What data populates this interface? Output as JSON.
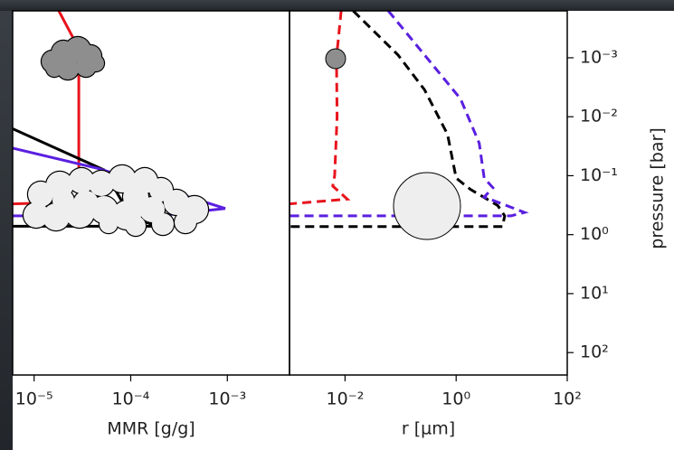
{
  "chart_data": [
    {
      "type": "line",
      "xlabel": "MMR [g/g]",
      "xscale": "log",
      "yscale": "log",
      "yinverted": true,
      "xlim": [
        6e-06,
        0.0044
      ],
      "xticks": [
        {
          "value": 1e-05,
          "label": "10⁻⁵"
        },
        {
          "value": 0.0001,
          "label": "10⁻⁴"
        },
        {
          "value": 0.001,
          "label": "10⁻³"
        }
      ],
      "ylim": [
        0.00016,
        240
      ],
      "series": [
        {
          "color": "#e8141c",
          "dash": false,
          "x": [
            1.8e-05,
            2.5e-05,
            2.9e-05,
            2.9e-05,
            2.9e-05,
            6e-06
          ],
          "values": [
            0.00016,
            0.00044,
            0.0017,
            0.08,
            0.28,
            0.3
          ]
        },
        {
          "color": "#000000",
          "dash": false,
          "x": [
            6e-06,
            5.3e-05,
            0.0001,
            0.00019,
            6e-06
          ],
          "values": [
            0.016,
            0.08,
            0.5,
            0.72,
            0.72
          ]
        },
        {
          "color": "#5a1fe0",
          "dash": false,
          "x": [
            6e-06,
            4.7e-05,
            0.00095,
            0.00019,
            6e-06
          ],
          "values": [
            0.034,
            0.076,
            0.36,
            0.48,
            0.48
          ]
        }
      ]
    },
    {
      "type": "line",
      "xlabel": "r [µm]",
      "ylabel": "pressure [bar]",
      "xscale": "log",
      "yscale": "log",
      "yinverted": true,
      "xlim": [
        0.001,
        100
      ],
      "xticks": [
        {
          "value": 0.01,
          "label": "10⁻²"
        },
        {
          "value": 1,
          "label": "10⁰"
        },
        {
          "value": 100,
          "label": "10²"
        }
      ],
      "ylim": [
        0.00016,
        240
      ],
      "yticks": [
        {
          "value": 0.001,
          "label": "10⁻³"
        },
        {
          "value": 0.01,
          "label": "10⁻²"
        },
        {
          "value": 0.1,
          "label": "10⁻¹"
        },
        {
          "value": 1,
          "label": "10⁰"
        },
        {
          "value": 10,
          "label": "10¹"
        },
        {
          "value": 100,
          "label": "10²"
        }
      ],
      "series": [
        {
          "color": "#e8141c",
          "dash": true,
          "x": [
            0.0085,
            0.007,
            0.0072,
            0.0065,
            0.006,
            0.011,
            0.001
          ],
          "values": [
            0.00016,
            0.001,
            0.01,
            0.1,
            0.15,
            0.25,
            0.3
          ]
        },
        {
          "color": "#000000",
          "dash": true,
          "x": [
            0.014,
            0.09,
            0.27,
            0.7,
            1.0,
            1.8,
            5.6,
            7.5,
            6.8,
            0.001
          ],
          "values": [
            0.00016,
            0.0009,
            0.0035,
            0.02,
            0.11,
            0.17,
            0.32,
            0.48,
            0.73,
            0.73
          ]
        },
        {
          "color": "#5a1fe0",
          "dash": true,
          "x": [
            0.06,
            0.27,
            1.2,
            2.6,
            3.2,
            4.6,
            3.2,
            17,
            9.7,
            0.001
          ],
          "values": [
            0.00016,
            0.0009,
            0.005,
            0.028,
            0.11,
            0.16,
            0.23,
            0.42,
            0.48,
            0.48
          ]
        }
      ]
    }
  ]
}
